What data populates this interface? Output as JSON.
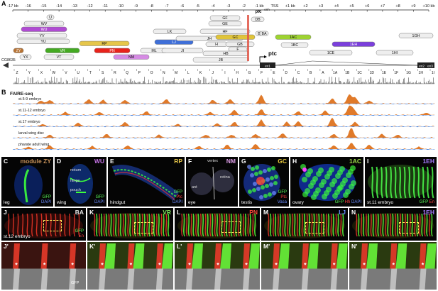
{
  "panel_letters": {
    "A": "A",
    "B": "B",
    "C": "C",
    "D": "D",
    "E": "E",
    "F": "F",
    "G": "G",
    "H": "H",
    "I": "I",
    "J": "J",
    "K": "K",
    "L": "L",
    "M": "M",
    "N": "N",
    "Jp": "J'",
    "Kp": "K'",
    "Lp": "L'",
    "Mp": "M'",
    "Np": "N'"
  },
  "genome_map": {
    "kb_ticks": [
      "-17 kb",
      "-16",
      "-15",
      "-14",
      "-13",
      "-12",
      "-11",
      "-10",
      "-9",
      "-8",
      "-7",
      "-6",
      "-5",
      "-4",
      "-3",
      "-2",
      "-1 kb",
      "TSS",
      "+1 kb",
      "+2",
      "+3",
      "+4",
      "+5",
      "+6",
      "+7",
      "+8",
      "+9",
      "+10 kb"
    ],
    "gene_left": "CG8635",
    "gene_main": "ptc",
    "ptc_enh_label": "ptc",
    "ptc_enh_sup": "enh",
    "exons": [
      "ex1",
      "ex2",
      "ex3"
    ],
    "fragment_letters": [
      "Z",
      "Y",
      "X",
      "W",
      "V",
      "U",
      "T",
      "S",
      "R",
      "Q",
      "P",
      "O",
      "N",
      "M",
      "L",
      "K",
      "J",
      "I",
      "H",
      "G",
      "F",
      "E",
      "D",
      "C",
      "B",
      "A",
      "1A",
      "1B",
      "1C",
      "1D",
      "1E",
      "1F",
      "1G",
      "1H",
      "1I"
    ],
    "construct_boxes": [
      "U",
      "WV",
      "WU",
      "YV",
      "YU",
      "ZY",
      "YX",
      "VR",
      "VT",
      "RP",
      "PN",
      "NM",
      "ML",
      "LK",
      "LJ",
      "JI",
      "JH",
      "HF",
      "GF",
      "GE",
      "H",
      "GB",
      "F",
      "GC",
      "HB",
      "JB",
      "DB",
      "B",
      "BA",
      "1AC",
      "1BC",
      "1CE",
      "1EH",
      "1GH",
      "1HI"
    ],
    "highlight_colors": {
      "ZY": "#b87333",
      "WU": "#b04bd3",
      "VR": "#44aa22",
      "RP": "#e6c64a",
      "PN": "#e8231c",
      "NM": "#d58be3",
      "LJ": "#3f6fd8",
      "GC": "#e0c43a",
      "1AC": "#9ed331",
      "1EH": "#7b3fdc",
      "DB_mark": "#e05545"
    }
  },
  "faire": {
    "title": "FAIRE-seq",
    "tracks": [
      "st.5-9 embryo",
      "st.11-12 embryo",
      "st.17 embryo",
      "larval wing disc",
      "pharate adult wing"
    ],
    "peak_color": "#e07a2a",
    "dip_color": "#3a78d8"
  },
  "micrographs": {
    "C": {
      "title": "module ZY",
      "title_color": "#c8925a",
      "tissue": "leg",
      "channels": [
        "GFP",
        "DAPI"
      ],
      "channel_colors": [
        "#5cff5c",
        "#6b8cff"
      ]
    },
    "D": {
      "title": "WU",
      "title_color": "#c674e8",
      "tissue": "wing",
      "channels": [
        "GFP",
        "DAPI"
      ],
      "channel_colors": [
        "#5cff5c",
        "#6b8cff"
      ],
      "annotations": [
        "notum",
        "hinge",
        "pouch"
      ]
    },
    "E": {
      "title": "RP",
      "title_color": "#e6c64a",
      "tissue": "hindgut",
      "channels": [
        "GFP",
        "Ptc",
        "DAPI"
      ],
      "channel_colors": [
        "#5cff5c",
        "#ff4444",
        "#6b8cff"
      ]
    },
    "F": {
      "title": "NM",
      "title_color": "#dc9de6",
      "tissue": "eye",
      "annotations": [
        "vertex",
        "ant",
        "retina"
      ]
    },
    "G": {
      "title": "GC",
      "title_color": "#e8c93b",
      "tissue": "testis",
      "channels": [
        "GFP",
        "Ptc",
        "Vasa"
      ],
      "channel_colors": [
        "#5cff5c",
        "#ff4444",
        "#6b8cff"
      ]
    },
    "H": {
      "title": "1AC",
      "title_color": "#9fe04a",
      "tissue": "ovary",
      "channels": [
        "GFP",
        "Hh",
        "DAPI"
      ],
      "channel_colors": [
        "#5cff5c",
        "#ff4444",
        "#6b8cff"
      ]
    },
    "I": {
      "title": "1EH",
      "title_color": "#a67cff",
      "tissue": "st.11 embryo",
      "channels": [
        "GFP",
        "En"
      ],
      "channel_colors": [
        "#5cff5c",
        "#ff4444"
      ]
    },
    "J": {
      "title": "BA",
      "title_color": "#e0e0e0",
      "tissue": "st.12 embryo",
      "channels": [
        "GFP",
        "En"
      ],
      "channel_colors": [
        "#5cff5c",
        "#ff4444"
      ]
    },
    "K": {
      "title": "VR",
      "title_color": "#7be05a"
    },
    "L": {
      "title": "PN",
      "title_color": "#ff4a3a"
    },
    "M": {
      "title": "LJ",
      "title_color": "#6a8eff"
    },
    "N": {
      "title": "1EH",
      "title_color": "#a67cff"
    },
    "Jp": {
      "channel": "GFP",
      "marker": "*"
    }
  }
}
